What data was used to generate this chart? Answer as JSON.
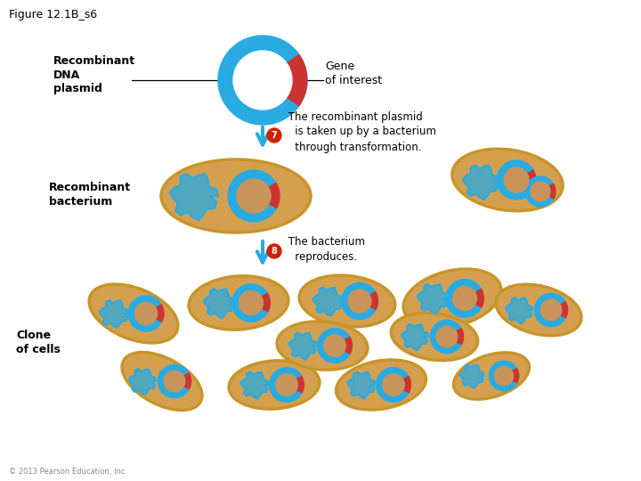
{
  "labels": {
    "figure_title": "Figure 12.1B_s6",
    "recombinant_dna_plasmid": "Recombinant\nDNA\nplasmid",
    "gene_of_interest": "Gene\nof interest",
    "step7_text": " The recombinant plasmid\n   is taken up by a bacterium\n   through transformation.",
    "recombinant_bacterium": "Recombinant\nbacterium",
    "step8_text": " The bacterium\n   reproduces.",
    "clone_of_cells": "Clone\nof cells",
    "copyright": "© 2013 Pearson Education, Inc."
  },
  "colors": {
    "background": "#ffffff",
    "plasmid_ring_blue": "#29abe2",
    "plasmid_ring_red": "#cc3333",
    "arrow_blue": "#29abe2",
    "bacterium_fill": "#d4a050",
    "bacterium_stroke": "#c8952a",
    "plasmid_small_blue": "#29abe2",
    "plasmid_small_inner": "#c8945a",
    "dna_blob": "#29abe2",
    "step_badge_red": "#cc2200",
    "step_badge_text": "#ffffff"
  }
}
